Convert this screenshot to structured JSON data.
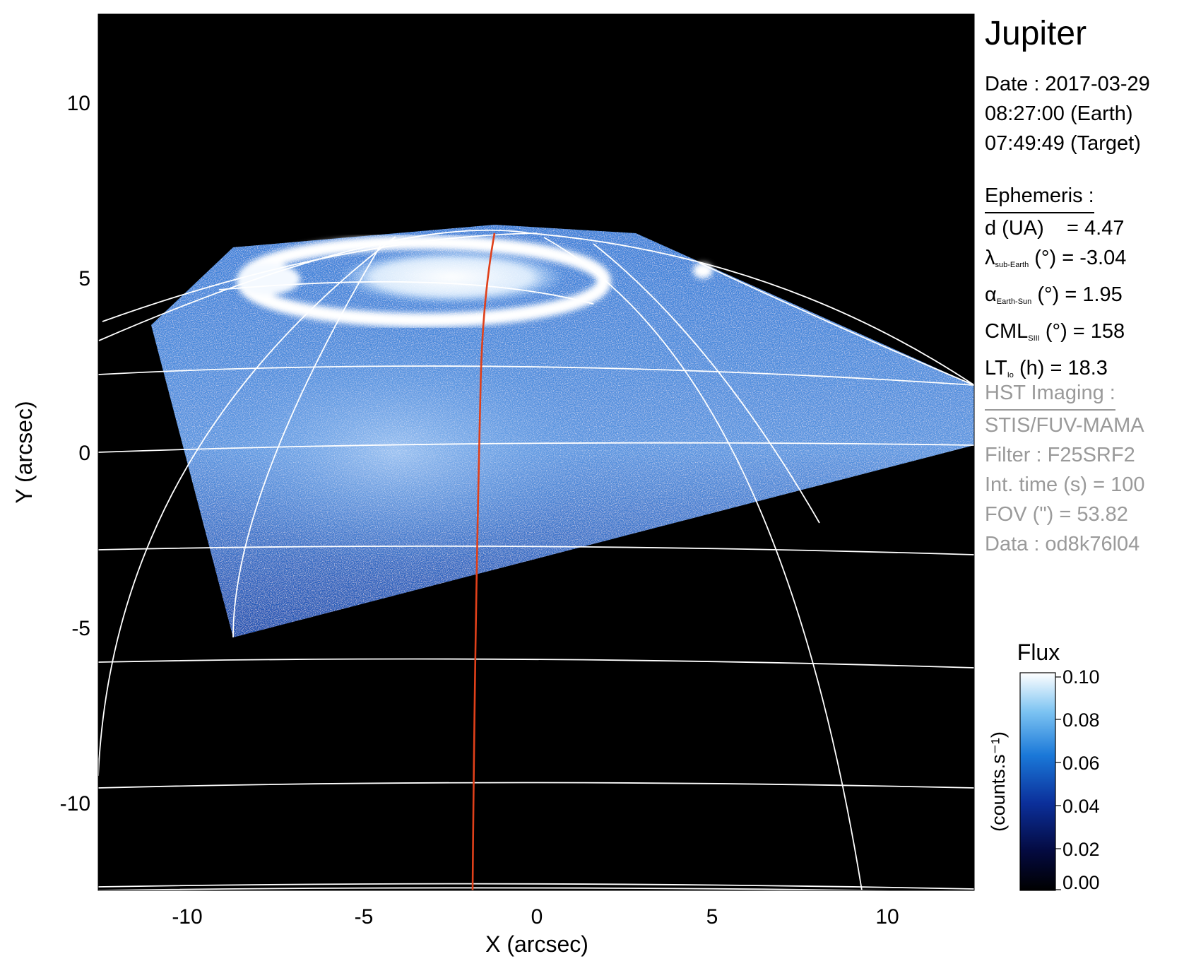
{
  "title": "Jupiter",
  "date": {
    "label": "Date : 2017-03-29",
    "earth_time": "08:27:00 (Earth)",
    "target_time": "07:49:49 (Target)"
  },
  "ephemeris": {
    "header": "Ephemeris :",
    "d": {
      "label": "d (UA)",
      "value": "= 4.47"
    },
    "lambda": {
      "symbol": "λ",
      "sub": "sub-Earth",
      "unit": "(°)",
      "value": "= -3.04"
    },
    "alpha": {
      "symbol": "α",
      "sub": "Earth-Sun",
      "unit": "(°)",
      "value": "= 1.95"
    },
    "cml": {
      "symbol": "CML",
      "sub": "SIII",
      "unit": "(°)",
      "value": "= 158"
    },
    "lt": {
      "symbol": "LT",
      "sub": "Io",
      "unit": "(h)",
      "value": "= 18.3"
    }
  },
  "hst": {
    "header": "HST Imaging :",
    "instrument": "STIS/FUV-MAMA",
    "filter": "Filter : F25SRF2",
    "int_time": "Int. time (s) = 100",
    "fov": "FOV (\") = 53.82",
    "data": "Data : od8k76l04"
  },
  "axes": {
    "xlabel": "X (arcsec)",
    "ylabel": "Y (arcsec)",
    "xticks": [
      "-10",
      "-5",
      "0",
      "5",
      "10"
    ],
    "yticks": [
      "10",
      "5",
      "0",
      "-5",
      "-10"
    ]
  },
  "colorbar": {
    "title": "Flux",
    "unit_label": "(counts.s⁻¹)",
    "ticks": [
      "0.10",
      "0.08",
      "0.06",
      "0.04",
      "0.02",
      "0.00"
    ]
  },
  "colors": {
    "background": "#000000",
    "grid": "#ffffff",
    "meridian": "#e0401a",
    "flux_low": "#000000",
    "flux_mid": "#1e6fd9",
    "flux_high": "#ffffff"
  }
}
